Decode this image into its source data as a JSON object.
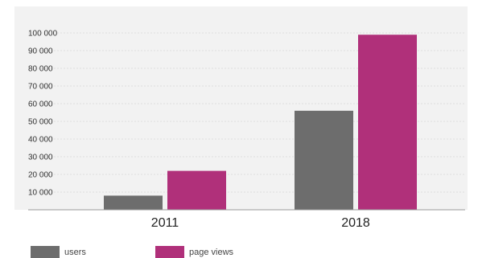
{
  "chart_data": {
    "type": "bar",
    "categories": [
      "2011",
      "2018"
    ],
    "series": [
      {
        "name": "users",
        "values": [
          8000,
          56000
        ],
        "color": "#6d6d6d"
      },
      {
        "name": "page views",
        "values": [
          22000,
          99000
        ],
        "color": "#b0307a"
      }
    ],
    "y_ticks": [
      10000,
      20000,
      30000,
      40000,
      50000,
      60000,
      70000,
      80000,
      90000,
      100000
    ],
    "y_tick_labels": [
      "10 000",
      "20 000",
      "30 000",
      "40 000",
      "50 000",
      "60 000",
      "70 000",
      "80 000",
      "90 000",
      "100 000"
    ],
    "ylim": [
      0,
      105000
    ],
    "grid": true,
    "legend_position": "bottom-left",
    "background_color": "#f2f2f2",
    "grid_color": "#d9d9d9",
    "axis_color": "#999999"
  }
}
